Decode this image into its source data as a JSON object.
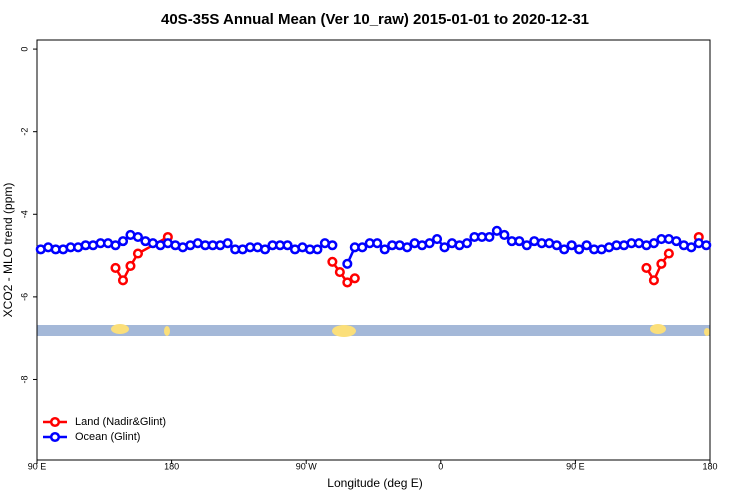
{
  "chart_data": {
    "type": "line",
    "title": "40S-35S Annual Mean (Ver 10_raw)   2015-01-01 to 2020-12-31",
    "x_label": "Longitude (deg E)",
    "y_label": "XCO2 - MLO trend (ppm)",
    "xlim": [
      90,
      540
    ],
    "ylim": [
      -9.95,
      0.22
    ],
    "xticks": [
      {
        "value": 90,
        "label": "90 E"
      },
      180,
      {
        "value": 270,
        "label": "90 W"
      },
      {
        "value": 360,
        "label": "0"
      },
      {
        "value": 450,
        "label": "90 E"
      },
      {
        "value": 540,
        "label": "180"
      }
    ],
    "yticks": [
      0,
      -2,
      -4,
      -6,
      -8
    ],
    "legend_position": "bottom-left",
    "series": [
      {
        "name": "Land (Nadir&Glint)",
        "color": "#ff0000",
        "x": [
          142.5,
          147.5,
          152.5,
          157.5,
          177.5,
          282.5,
          287.5,
          292.5,
          297.5,
          302.5,
          492.5,
          497.5,
          502.5,
          507.5,
          512.5,
          527.5,
          532.5
        ],
        "values": [
          -5.3,
          -5.6,
          -5.25,
          -4.95,
          -4.55,
          null,
          -5.15,
          -5.4,
          -5.65,
          -5.55,
          null,
          -5.3,
          -5.6,
          -5.2,
          -4.95,
          null,
          -4.55
        ]
      },
      {
        "name": "Ocean (Glint)",
        "color": "#0000ff",
        "x": [
          92.5,
          97.5,
          102.5,
          107.5,
          112.5,
          117.5,
          122.5,
          127.5,
          132.5,
          137.5,
          142.5,
          147.5,
          152.5,
          157.5,
          162.5,
          167.5,
          172.5,
          177.5,
          182.5,
          187.5,
          192.5,
          197.5,
          202.5,
          207.5,
          212.5,
          217.5,
          222.5,
          227.5,
          232.5,
          237.5,
          242.5,
          247.5,
          252.5,
          257.5,
          262.5,
          267.5,
          272.5,
          277.5,
          282.5,
          287.5,
          292.5,
          297.5,
          302.5,
          307.5,
          312.5,
          317.5,
          322.5,
          327.5,
          332.5,
          337.5,
          342.5,
          347.5,
          352.5,
          357.5,
          362.5,
          367.5,
          372.5,
          377.5,
          382.5,
          387.5,
          392.5,
          397.5,
          402.5,
          407.5,
          412.5,
          417.5,
          422.5,
          427.5,
          432.5,
          437.5,
          442.5,
          447.5,
          452.5,
          457.5,
          462.5,
          467.5,
          472.5,
          477.5,
          482.5,
          487.5,
          492.5,
          497.5,
          502.5,
          507.5,
          512.5,
          517.5,
          522.5,
          527.5,
          532.5,
          537.5
        ],
        "values": [
          -4.85,
          -4.8,
          -4.85,
          -4.85,
          -4.8,
          -4.8,
          -4.75,
          -4.75,
          -4.7,
          -4.7,
          -4.75,
          -4.65,
          -4.5,
          -4.55,
          -4.65,
          -4.7,
          -4.75,
          -4.7,
          -4.75,
          -4.8,
          -4.75,
          -4.7,
          -4.75,
          -4.75,
          -4.75,
          -4.7,
          -4.85,
          -4.85,
          -4.8,
          -4.8,
          -4.85,
          -4.75,
          -4.75,
          -4.75,
          -4.85,
          -4.8,
          -4.85,
          -4.85,
          -4.7,
          -4.75,
          null,
          -5.2,
          -4.8,
          -4.8,
          -4.7,
          -4.7,
          -4.85,
          -4.75,
          -4.75,
          -4.8,
          -4.7,
          -4.75,
          -4.7,
          -4.6,
          -4.8,
          -4.7,
          -4.75,
          -4.7,
          -4.55,
          -4.55,
          -4.55,
          -4.4,
          -4.5,
          -4.65,
          -4.65,
          -4.75,
          -4.65,
          -4.7,
          -4.7,
          -4.75,
          -4.85,
          -4.75,
          -4.85,
          -4.75,
          -4.85,
          -4.85,
          -4.8,
          -4.75,
          -4.75,
          -4.7,
          -4.7,
          -4.75,
          -4.7,
          -4.6,
          -4.6,
          -4.65,
          -4.75,
          -4.8,
          -4.7,
          -4.75
        ]
      }
    ]
  }
}
